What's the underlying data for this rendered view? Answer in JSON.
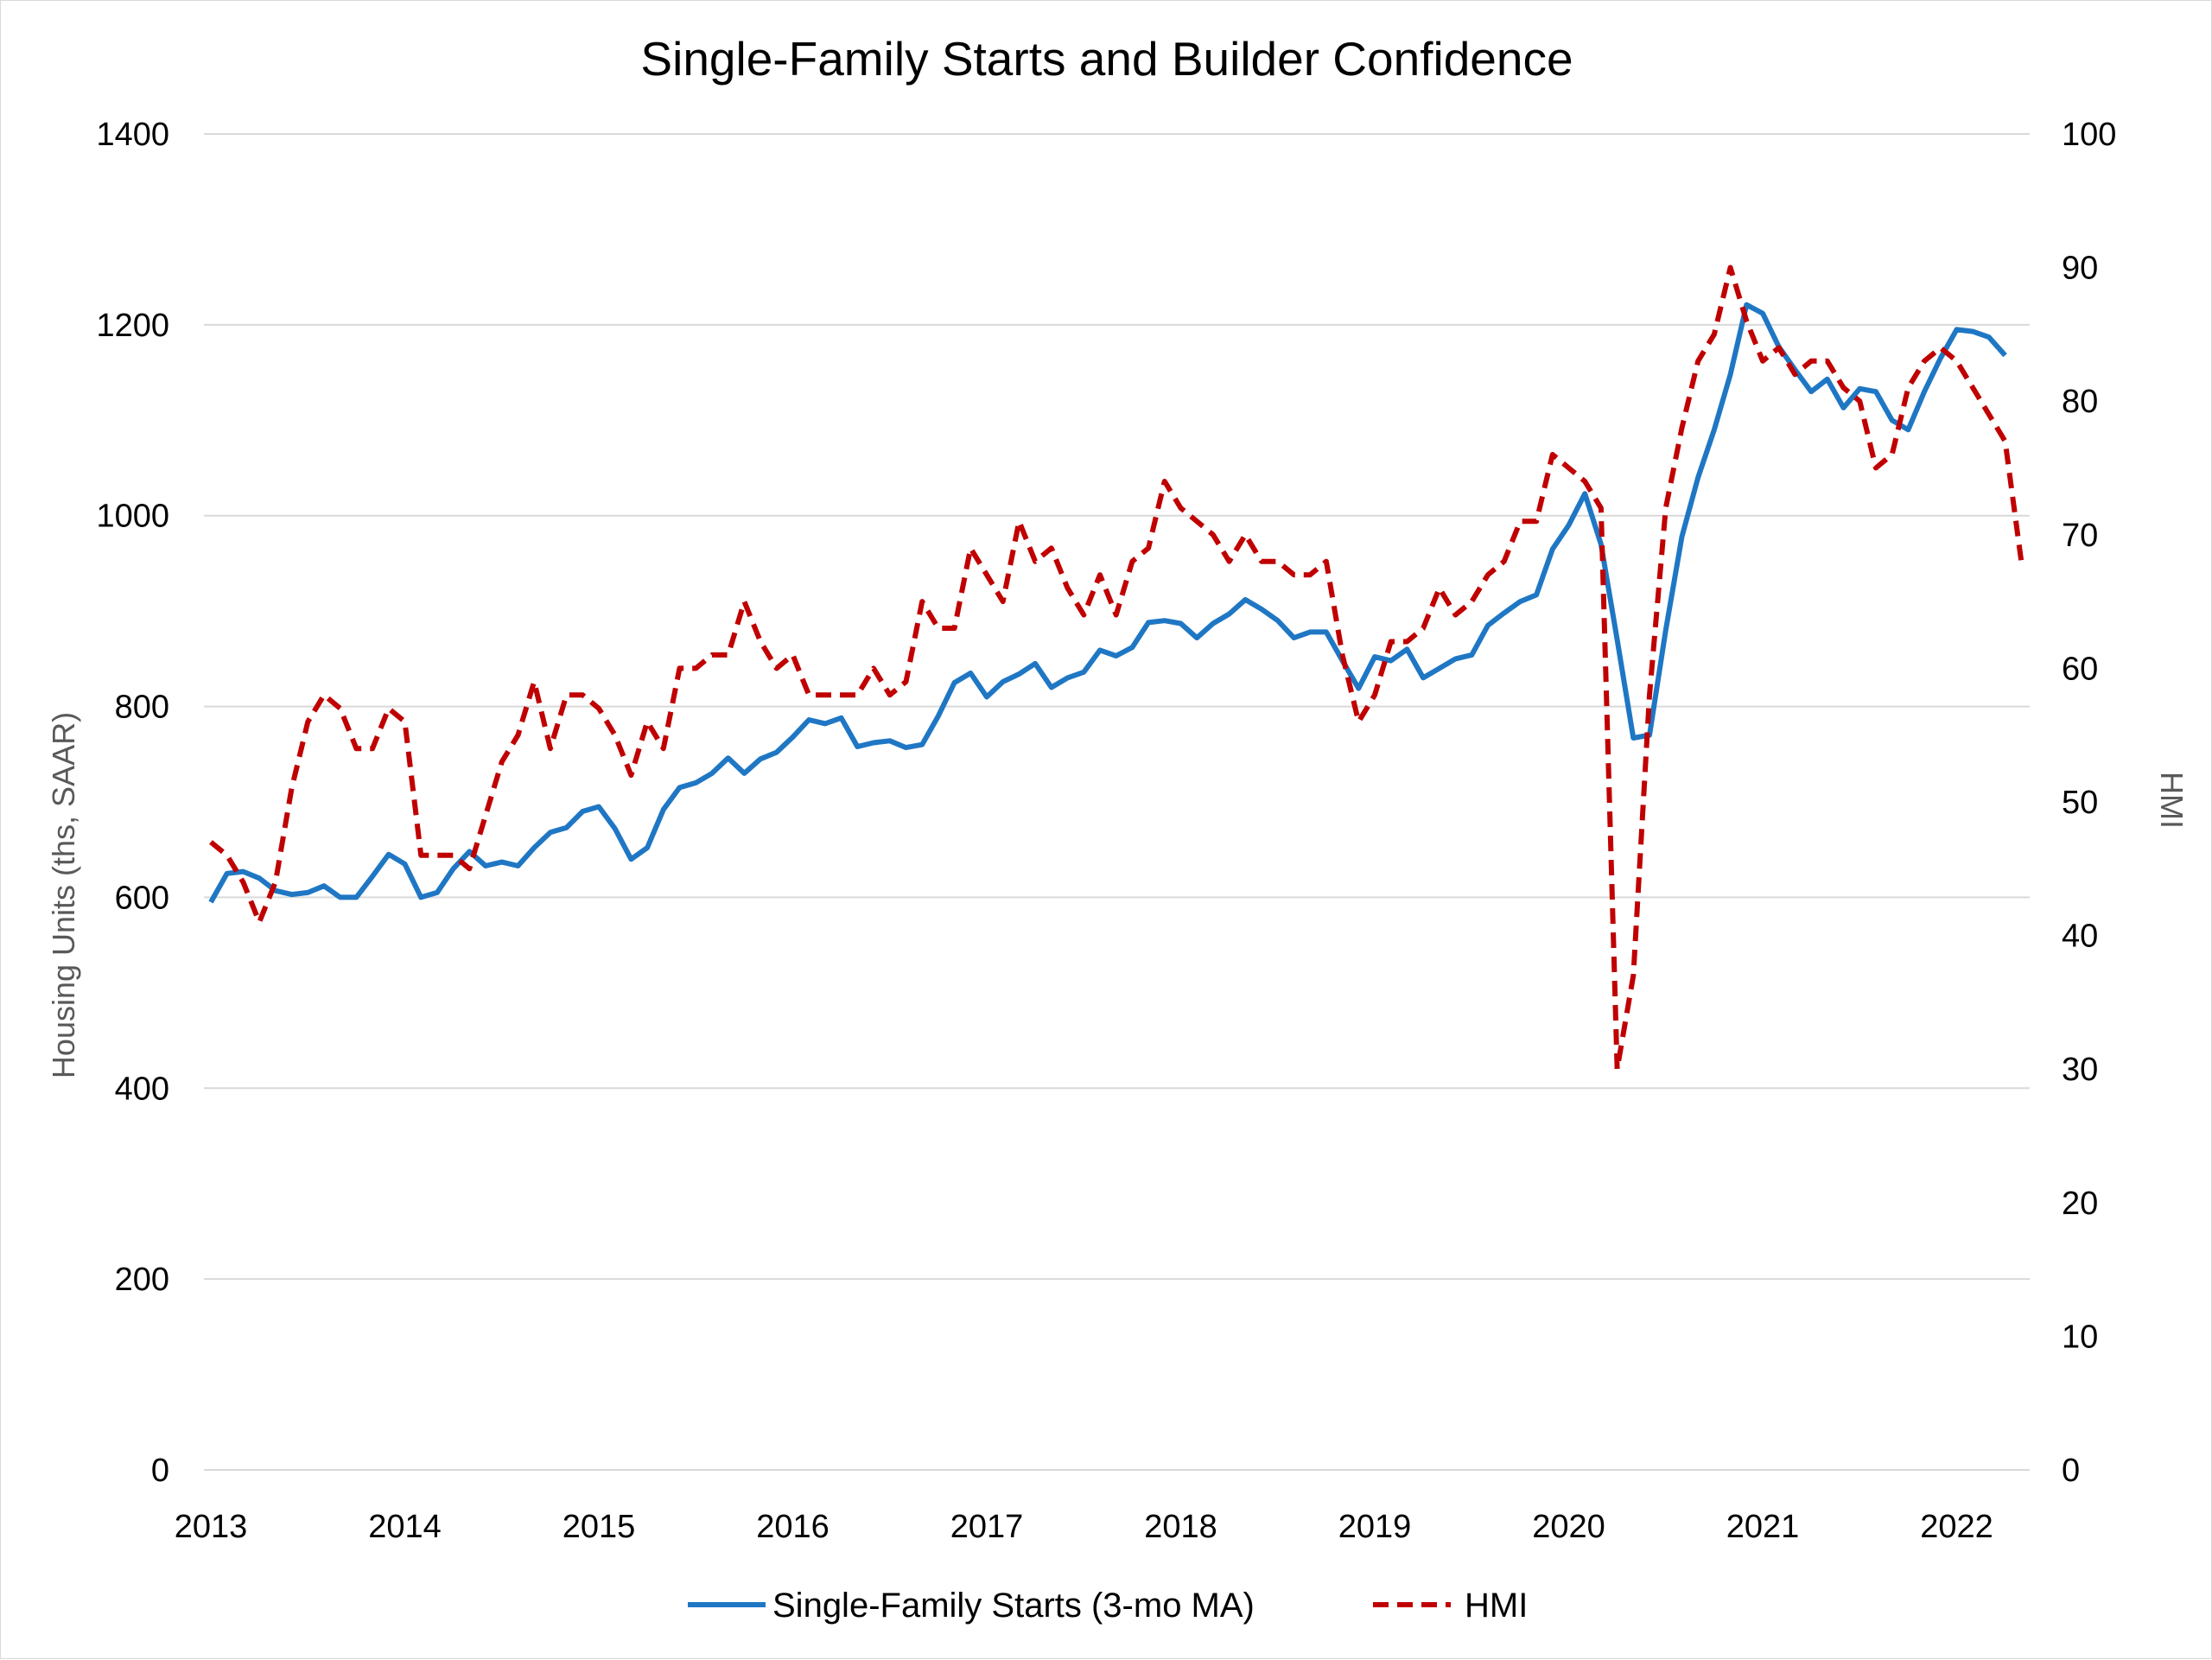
{
  "chart_data": {
    "type": "line",
    "title": "Single-Family Starts and Builder Confidence",
    "ylabel_left": "Housing Units (ths, SAAR)",
    "ylabel_right": "HMI",
    "xlabel": "",
    "x_ticks": [
      "2013",
      "2014",
      "2015",
      "2016",
      "2017",
      "2018",
      "2019",
      "2020",
      "2021",
      "2022"
    ],
    "y_left_ticks": [
      "0",
      "200",
      "400",
      "600",
      "800",
      "1000",
      "1200",
      "1400"
    ],
    "y_right_ticks": [
      "0",
      "10",
      "20",
      "30",
      "40",
      "50",
      "60",
      "70",
      "80",
      "90",
      "100"
    ],
    "ylim_left": [
      0,
      1400
    ],
    "ylim_right": [
      0,
      100
    ],
    "x_start": "2013-01",
    "grid": "horizontal",
    "legend_position": "bottom",
    "series": [
      {
        "name": "Single-Family Starts (3-mo MA)",
        "axis": "left",
        "color": "#1f77c4",
        "style": "solid",
        "values": [
          595,
          625,
          627,
          620,
          607,
          603,
          605,
          612,
          600,
          600,
          622,
          645,
          635,
          600,
          605,
          630,
          648,
          633,
          637,
          633,
          652,
          668,
          673,
          690,
          695,
          672,
          640,
          652,
          692,
          715,
          720,
          730,
          746,
          730,
          745,
          752,
          768,
          786,
          782,
          788,
          758,
          762,
          764,
          757,
          760,
          790,
          825,
          835,
          810,
          826,
          834,
          845,
          820,
          830,
          836,
          859,
          853,
          862,
          888,
          890,
          887,
          872,
          887,
          897,
          912,
          902,
          890,
          872,
          878,
          878,
          848,
          819,
          852,
          848,
          860,
          830,
          840,
          850,
          854,
          885,
          898,
          910,
          917,
          965,
          990,
          1023,
          970,
          870,
          767,
          770,
          880,
          978,
          1040,
          1090,
          1148,
          1221,
          1212,
          1177,
          1153,
          1130,
          1143,
          1113,
          1133,
          1130,
          1100,
          1090,
          1130,
          1165,
          1195,
          1193,
          1187,
          1168
        ]
      },
      {
        "name": "HMI",
        "axis": "right",
        "color": "#c00000",
        "style": "dashed",
        "values": [
          47,
          46,
          44,
          41,
          44,
          51,
          56,
          58,
          57,
          54,
          54,
          57,
          56,
          46,
          46,
          46,
          45,
          49,
          53,
          55,
          59,
          54,
          58,
          58,
          57,
          55,
          52,
          56,
          54,
          60,
          60,
          61,
          61,
          65,
          62,
          60,
          61,
          58,
          58,
          58,
          58,
          60,
          58,
          59,
          65,
          63,
          63,
          69,
          67,
          65,
          71,
          68,
          69,
          66,
          64,
          67,
          64,
          68,
          69,
          74,
          72,
          71,
          70,
          68,
          70,
          68,
          68,
          67,
          67,
          68,
          61,
          56,
          58,
          62,
          62,
          63,
          66,
          64,
          65,
          67,
          68,
          71,
          71,
          76,
          75,
          74,
          72,
          30,
          37,
          58,
          72,
          78,
          83,
          85,
          90,
          86,
          83,
          84,
          82,
          83,
          83,
          81,
          80,
          75,
          76,
          81,
          83,
          84,
          83,
          81,
          79,
          77,
          68
        ]
      }
    ]
  }
}
